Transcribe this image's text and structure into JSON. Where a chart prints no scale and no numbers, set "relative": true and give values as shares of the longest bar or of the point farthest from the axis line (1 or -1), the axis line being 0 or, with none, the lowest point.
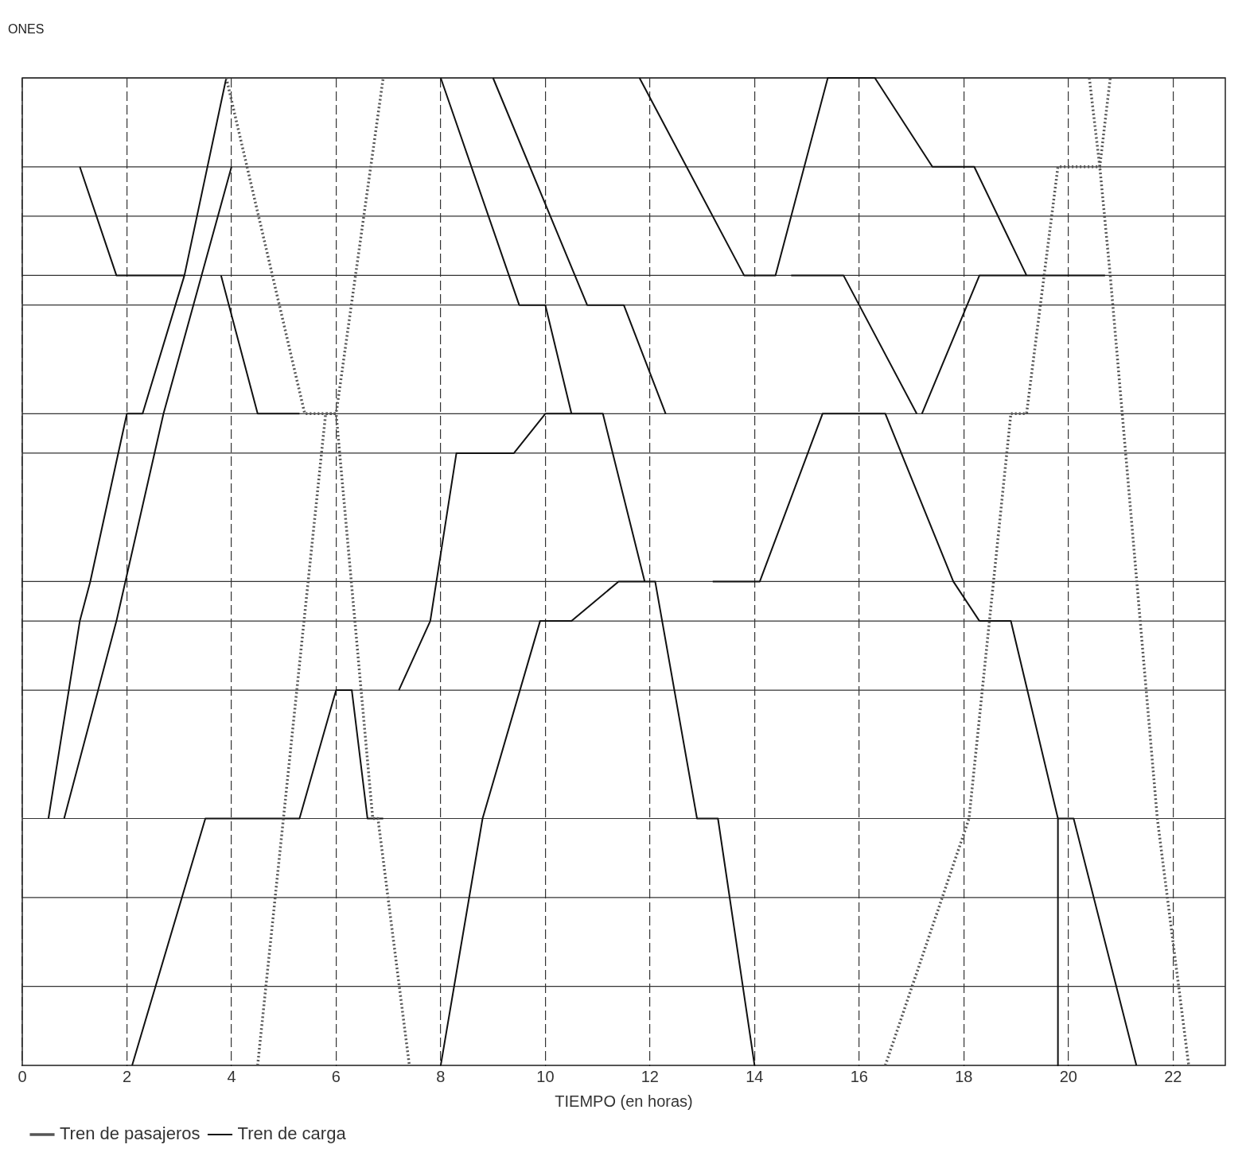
{
  "chart_data": {
    "type": "line",
    "relative": true,
    "ylabel": "ONES",
    "xlabel": "TIEMPO (en horas)",
    "xlim": [
      0,
      23
    ],
    "xticks": [
      0,
      2,
      4,
      6,
      8,
      10,
      12,
      14,
      16,
      18,
      20,
      22
    ],
    "grid": "x",
    "legend": "bottom left",
    "marker": "none",
    "ref_lines": [
      {
        "axis": "y",
        "value": 1
      },
      {
        "axis": "y",
        "value": 0.91
      },
      {
        "axis": "y",
        "value": 0.86
      },
      {
        "axis": "y",
        "value": 0.8
      },
      {
        "axis": "y",
        "value": 0.77
      },
      {
        "axis": "y",
        "value": 0.66
      },
      {
        "axis": "y",
        "value": 0.62
      },
      {
        "axis": "y",
        "value": 0.49
      },
      {
        "axis": "y",
        "value": 0.45
      },
      {
        "axis": "y",
        "value": 0.38
      },
      {
        "axis": "y",
        "value": 0.25
      },
      {
        "axis": "y",
        "value": 0.17
      },
      {
        "axis": "y",
        "value": 0.08
      }
    ],
    "series": [
      {
        "name": "Tren de pasajeros",
        "color": "#555555",
        "line_style": "dotted",
        "x": [
          4.5,
          5.8,
          6.0,
          6.9,
          null,
          3.9,
          5.4,
          6.0,
          6.7,
          6.8,
          7.4,
          null,
          16.5,
          18.1,
          18.9,
          19.2,
          19.8,
          20.6,
          20.8,
          null,
          20.4,
          20.6,
          20.8,
          21.7,
          22.3
        ],
        "values": [
          0,
          0.66,
          0.66,
          1,
          null,
          1,
          0.66,
          0.66,
          0.25,
          0.25,
          0,
          null,
          0,
          0.25,
          0.66,
          0.66,
          0.91,
          0.91,
          1,
          null,
          1,
          0.91,
          0.8,
          0.25,
          0
        ]
      },
      {
        "name": "Tren de carga",
        "color": "#111111",
        "line_style": "solid",
        "x": [
          8.0,
          8.8,
          9.9,
          10.5,
          11.4,
          12.0,
          null,
          1.1,
          1.8,
          3.1,
          null,
          0.5,
          1.1,
          1.3,
          2.0,
          2.3,
          3.1,
          3.9,
          null,
          0.8,
          1.8,
          2.7,
          4.0,
          null,
          3.8,
          4.5,
          5.3,
          null,
          2.1,
          3.5,
          5.3,
          6.0,
          6.3,
          6.6,
          6.9,
          null,
          8.0,
          9.5,
          10.0,
          10.5,
          11.1,
          11.9,
          12.1,
          12.9,
          13.3,
          14.0,
          null,
          9.0,
          10.8,
          11.5,
          12.3,
          null,
          11.8,
          13.8,
          14.4,
          15.4,
          16.3,
          17.4,
          18.2,
          19.2,
          null,
          7.2,
          7.8,
          8.3,
          9.4,
          10.0,
          11.1,
          null,
          14.7,
          15.7,
          17.1,
          null,
          13.2,
          14.1,
          15.3,
          16.5,
          17.8,
          18.3,
          null,
          17.2,
          18.3,
          20.1,
          20.7,
          null,
          19.8,
          20.1,
          21.3,
          null,
          18.3,
          18.9,
          19.8,
          19.8
        ],
        "values": [
          0,
          0.25,
          0.45,
          0.45,
          0.49,
          0.49,
          null,
          0.91,
          0.8,
          0.8,
          null,
          0.25,
          0.45,
          0.49,
          0.66,
          0.66,
          0.8,
          1,
          null,
          0.25,
          0.45,
          0.66,
          0.91,
          null,
          0.8,
          0.66,
          0.66,
          null,
          0,
          0.25,
          0.25,
          0.38,
          0.38,
          0.25,
          0.25,
          null,
          1,
          0.77,
          0.77,
          0.66,
          0.66,
          0.49,
          0.49,
          0.25,
          0.25,
          0,
          null,
          1,
          0.77,
          0.77,
          0.66,
          null,
          1,
          0.8,
          0.8,
          1,
          1,
          0.91,
          0.91,
          0.8,
          null,
          0.38,
          0.45,
          0.62,
          0.62,
          0.66,
          0.66,
          null,
          0.8,
          0.8,
          0.66,
          null,
          0.49,
          0.49,
          0.66,
          0.66,
          0.49,
          0.45,
          null,
          0.66,
          0.8,
          0.8,
          0.8,
          null,
          0.25,
          0.25,
          0,
          null,
          0.45,
          0.45,
          0.25,
          0
        ]
      }
    ]
  }
}
